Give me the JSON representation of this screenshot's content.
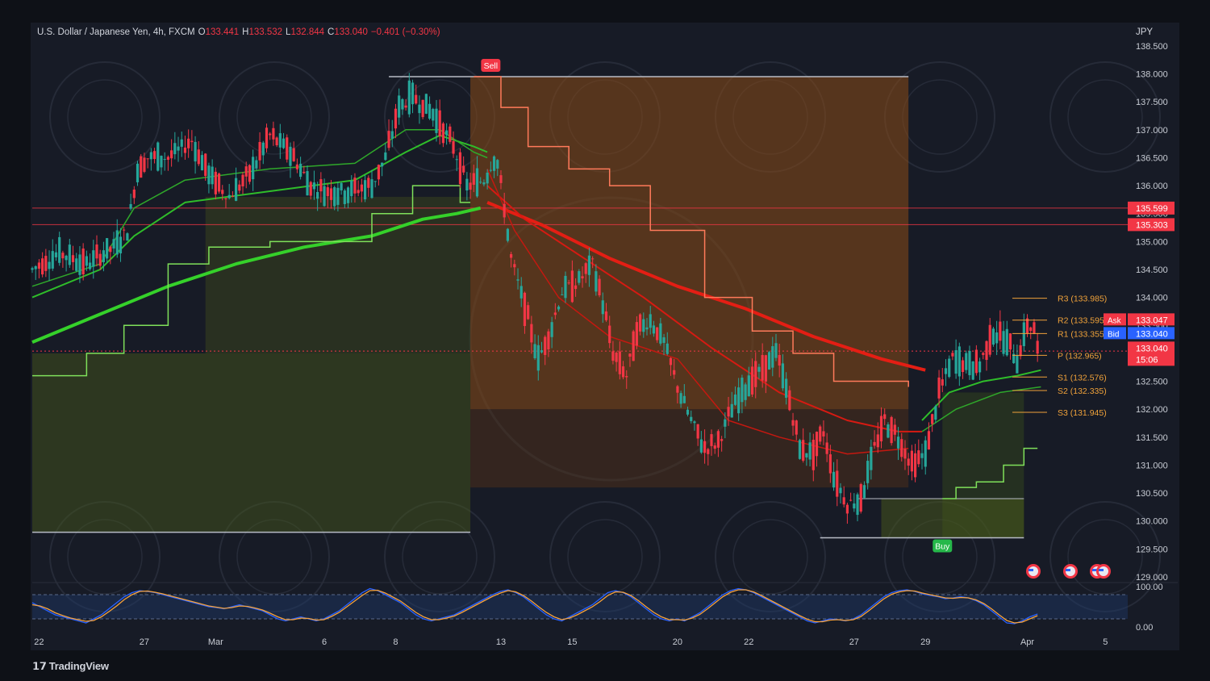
{
  "header": {
    "symbol": "U.S. Dollar / Japanese Yen, 4h, FXCM",
    "o_label": "O",
    "o_value": "133.441",
    "h_label": "H",
    "h_value": "133.532",
    "l_label": "L",
    "l_value": "132.844",
    "c_label": "C",
    "c_value": "133.040",
    "change": "−0.401 (−0.30%)"
  },
  "currency": "JPY",
  "brand": "TradingView",
  "colors": {
    "background": "#171b26",
    "bull": "#26a69a",
    "bear": "#f23645",
    "ema_green": "#35d12a",
    "ema_red": "#f0261a",
    "pivot": "#f0a23a",
    "sell_tag": "#f23645",
    "buy_tag": "#26b84a",
    "ask_tag": "#f23645",
    "bid_tag": "#2962ff",
    "osc_blue": "#2962ff",
    "osc_orange": "#f7a23a"
  },
  "chart_data": [
    {
      "type": "candlestick",
      "interval": "4h",
      "ylim": [
        129.0,
        138.6
      ],
      "y_ticks": [
        "138.500",
        "138.000",
        "137.500",
        "137.000",
        "136.500",
        "136.000",
        "135.500",
        "135.000",
        "134.500",
        "134.000",
        "133.500",
        "133.000",
        "132.500",
        "132.000",
        "131.500",
        "131.000",
        "130.500",
        "130.000",
        "129.500",
        "129.000"
      ],
      "x_ticks": [
        {
          "label": "22",
          "i": 2
        },
        {
          "label": "27",
          "i": 33
        },
        {
          "label": "Mar",
          "i": 54
        },
        {
          "label": "6",
          "i": 86
        },
        {
          "label": "8",
          "i": 107
        },
        {
          "label": "13",
          "i": 138
        },
        {
          "label": "15",
          "i": 159
        },
        {
          "label": "20",
          "i": 190
        },
        {
          "label": "22",
          "i": 211
        },
        {
          "label": "27",
          "i": 242
        },
        {
          "label": "29",
          "i": 263
        },
        {
          "label": "Apr",
          "i": 293
        },
        {
          "label": "5",
          "i": 316
        }
      ],
      "price_levels": [
        {
          "label": "135.599",
          "value": 135.599
        },
        {
          "label": "135.303",
          "value": 135.303
        }
      ],
      "pivots": [
        {
          "label": "R3 (133.985)",
          "value": 133.985
        },
        {
          "label": "R2 (133.595)",
          "value": 133.595
        },
        {
          "label": "R1 (133.355)",
          "value": 133.355
        },
        {
          "label": "P (132.965)",
          "value": 132.965
        },
        {
          "label": "S1 (132.576)",
          "value": 132.576
        },
        {
          "label": "S2 (132.335)",
          "value": 132.335
        },
        {
          "label": "S3 (131.945)",
          "value": 131.945
        }
      ],
      "quote": {
        "ask_label": "Ask",
        "ask": "133.047",
        "bid_label": "Bid",
        "bid": "133.040",
        "last": "133.040",
        "countdown": "15:06"
      },
      "signals": [
        {
          "label": "Sell",
          "i": 135,
          "price": 137.95
        },
        {
          "label": "Buy",
          "i": 268,
          "price": 129.7
        }
      ],
      "anchors": [
        [
          0,
          134.5
        ],
        [
          8,
          134.8
        ],
        [
          16,
          134.6
        ],
        [
          24,
          134.9
        ],
        [
          28,
          135.2
        ],
        [
          31,
          136.3
        ],
        [
          34,
          136.5
        ],
        [
          40,
          136.5
        ],
        [
          47,
          136.8
        ],
        [
          52,
          136.2
        ],
        [
          55,
          136.0
        ],
        [
          58,
          135.8
        ],
        [
          64,
          136.2
        ],
        [
          70,
          136.9
        ],
        [
          76,
          136.6
        ],
        [
          82,
          136.0
        ],
        [
          86,
          135.9
        ],
        [
          93,
          135.9
        ],
        [
          100,
          136.0
        ],
        [
          104,
          136.5
        ],
        [
          108,
          137.4
        ],
        [
          112,
          137.6
        ],
        [
          118,
          137.3
        ],
        [
          124,
          136.7
        ],
        [
          128,
          136.0
        ],
        [
          133,
          136.1
        ],
        [
          136,
          136.5
        ],
        [
          137,
          136.4
        ],
        [
          139,
          135.6
        ],
        [
          141,
          134.7
        ],
        [
          146,
          133.6
        ],
        [
          149,
          132.9
        ],
        [
          152,
          133.3
        ],
        [
          156,
          134.1
        ],
        [
          161,
          134.3
        ],
        [
          165,
          134.6
        ],
        [
          168,
          133.9
        ],
        [
          171,
          133.0
        ],
        [
          175,
          132.6
        ],
        [
          178,
          133.4
        ],
        [
          182,
          133.6
        ],
        [
          186,
          133.2
        ],
        [
          190,
          132.4
        ],
        [
          194,
          131.8
        ],
        [
          198,
          131.3
        ],
        [
          202,
          131.4
        ],
        [
          206,
          132.0
        ],
        [
          211,
          132.5
        ],
        [
          215,
          132.7
        ],
        [
          219,
          133.0
        ],
        [
          222,
          132.4
        ],
        [
          226,
          131.3
        ],
        [
          230,
          131.2
        ],
        [
          233,
          131.6
        ],
        [
          236,
          130.8
        ],
        [
          240,
          130.3
        ],
        [
          244,
          130.4
        ],
        [
          248,
          131.3
        ],
        [
          251,
          131.8
        ],
        [
          255,
          131.5
        ],
        [
          259,
          131.0
        ],
        [
          263,
          131.2
        ],
        [
          267,
          132.3
        ],
        [
          271,
          132.9
        ],
        [
          275,
          132.8
        ],
        [
          279,
          132.8
        ],
        [
          283,
          133.4
        ],
        [
          287,
          133.2
        ],
        [
          290,
          132.9
        ],
        [
          293,
          133.5
        ],
        [
          295,
          133.44
        ],
        [
          296,
          133.04
        ]
      ],
      "series": [
        {
          "kind": "ema",
          "color": "#35d12a",
          "width": 4,
          "points": [
            [
              0,
              133.2
            ],
            [
              20,
              133.7
            ],
            [
              40,
              134.2
            ],
            [
              60,
              134.6
            ],
            [
              80,
              134.9
            ],
            [
              100,
              135.1
            ],
            [
              115,
              135.4
            ],
            [
              125,
              135.5
            ],
            [
              132,
              135.6
            ]
          ]
        },
        {
          "kind": "ema",
          "color": "#2fbd2a",
          "width": 2,
          "points": [
            [
              0,
              134.0
            ],
            [
              20,
              134.5
            ],
            [
              30,
              135.1
            ],
            [
              45,
              135.7
            ],
            [
              70,
              135.9
            ],
            [
              95,
              136.1
            ],
            [
              110,
              136.6
            ],
            [
              120,
              136.9
            ],
            [
              130,
              136.7
            ],
            [
              134,
              136.6
            ]
          ]
        },
        {
          "kind": "ema",
          "color": "#2fa82a",
          "width": 1.5,
          "points": [
            [
              0,
              134.2
            ],
            [
              20,
              134.6
            ],
            [
              30,
              135.6
            ],
            [
              45,
              136.1
            ],
            [
              70,
              136.3
            ],
            [
              95,
              136.4
            ],
            [
              110,
              137.0
            ],
            [
              120,
              137.0
            ],
            [
              130,
              136.6
            ],
            [
              134,
              136.5
            ]
          ]
        },
        {
          "kind": "ema",
          "color": "#e41e14",
          "width": 4,
          "points": [
            [
              134,
              135.7
            ],
            [
              150,
              135.3
            ],
            [
              170,
              134.7
            ],
            [
              190,
              134.2
            ],
            [
              210,
              133.8
            ],
            [
              230,
              133.3
            ],
            [
              250,
              132.9
            ],
            [
              263,
              132.7
            ]
          ]
        },
        {
          "kind": "ema",
          "color": "#d61a12",
          "width": 2,
          "points": [
            [
              134,
              136.0
            ],
            [
              145,
              135.4
            ],
            [
              160,
              134.8
            ],
            [
              180,
              134.0
            ],
            [
              200,
              133.1
            ],
            [
              220,
              132.3
            ],
            [
              240,
              131.8
            ],
            [
              255,
              131.6
            ],
            [
              262,
              131.6
            ]
          ]
        },
        {
          "kind": "ema",
          "color": "#c41810",
          "width": 1.5,
          "points": [
            [
              134,
              136.3
            ],
            [
              142,
              135.2
            ],
            [
              155,
              134.0
            ],
            [
              170,
              133.3
            ],
            [
              190,
              132.9
            ],
            [
              205,
              131.8
            ],
            [
              220,
              131.5
            ],
            [
              240,
              131.2
            ],
            [
              258,
              131.3
            ]
          ]
        },
        {
          "kind": "ema",
          "color": "#2fbd2a",
          "width": 2,
          "points": [
            [
              262,
              131.8
            ],
            [
              270,
              132.3
            ],
            [
              280,
              132.5
            ],
            [
              290,
              132.6
            ],
            [
              297,
              132.7
            ]
          ]
        },
        {
          "kind": "ema",
          "color": "#2fa82a",
          "width": 1.5,
          "points": [
            [
              262,
              131.6
            ],
            [
              272,
              132.0
            ],
            [
              285,
              132.3
            ],
            [
              297,
              132.4
            ]
          ]
        }
      ]
    },
    {
      "type": "line",
      "name": "oscillator",
      "ylim": [
        0,
        100
      ],
      "y_ticks": [
        "100.00",
        "0.00"
      ],
      "bands": [
        80,
        20
      ],
      "series": [
        {
          "color": "#2962ff",
          "values": [
            60,
            50,
            40,
            30,
            25,
            20,
            15,
            10,
            20,
            30,
            45,
            60,
            75,
            85,
            90,
            88,
            85,
            80,
            75,
            70,
            65,
            60,
            55,
            50,
            48,
            45,
            50,
            55,
            50,
            45,
            40,
            30,
            20,
            15,
            20,
            25,
            20,
            15,
            20,
            30,
            40,
            55,
            70,
            85,
            95,
            90,
            80,
            70,
            60,
            45,
            30,
            20,
            15,
            20,
            25,
            30,
            40,
            50,
            60,
            70,
            80,
            88,
            92,
            85,
            75,
            60,
            45,
            30,
            20,
            15,
            25,
            35,
            45,
            55,
            70,
            85,
            90,
            85,
            75,
            60,
            45,
            30,
            20,
            15,
            20,
            15,
            25,
            35,
            50,
            65,
            80,
            90,
            95,
            92,
            85,
            75,
            65,
            55,
            45,
            35,
            25,
            15,
            10,
            15,
            20,
            18,
            15,
            20,
            30,
            45,
            60,
            75,
            85,
            90,
            92,
            88,
            82,
            78,
            75,
            70,
            72,
            75,
            72,
            65,
            55,
            40,
            25,
            10,
            8,
            15,
            25,
            32
          ]
        },
        {
          "color": "#f7a23a",
          "values": [
            55,
            52,
            45,
            35,
            28,
            22,
            18,
            14,
            16,
            25,
            38,
            52,
            68,
            80,
            88,
            89,
            86,
            82,
            77,
            72,
            67,
            62,
            57,
            52,
            49,
            46,
            48,
            52,
            51,
            47,
            42,
            34,
            25,
            18,
            18,
            22,
            21,
            17,
            18,
            26,
            36,
            50,
            64,
            78,
            90,
            91,
            84,
            74,
            64,
            50,
            36,
            25,
            18,
            18,
            22,
            27,
            36,
            46,
            56,
            66,
            76,
            84,
            90,
            87,
            78,
            65,
            50,
            36,
            25,
            18,
            22,
            30,
            40,
            50,
            63,
            78,
            87,
            86,
            78,
            65,
            50,
            36,
            25,
            18,
            18,
            17,
            22,
            31,
            45,
            60,
            75,
            86,
            92,
            92,
            87,
            78,
            68,
            58,
            48,
            38,
            28,
            19,
            13,
            13,
            17,
            18,
            16,
            18,
            26,
            40,
            55,
            70,
            81,
            87,
            90,
            89,
            84,
            80,
            76,
            72,
            71,
            73,
            72,
            67,
            58,
            45,
            30,
            16,
            10,
            12,
            20,
            28
          ]
        }
      ]
    }
  ]
}
